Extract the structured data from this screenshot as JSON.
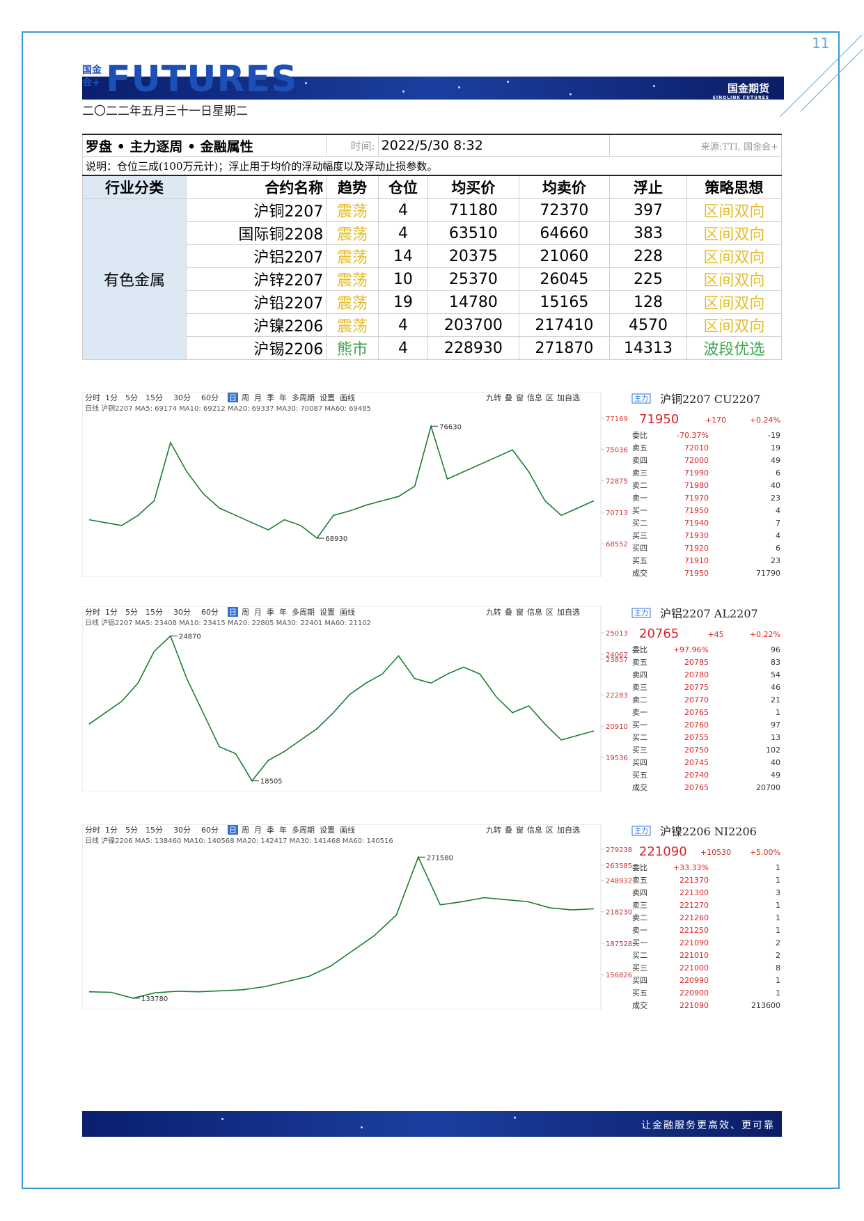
{
  "header": {
    "page_number": "11",
    "logo_small": "国金会+",
    "logo": "FUTURES",
    "brand": "国金期货",
    "brand_en": "SINOLINK FUTURES",
    "date": "二〇二二年五月三十一日星期二"
  },
  "table": {
    "title": "罗盘 • 主力逐周 • 金融属性",
    "time_label": "时间:",
    "time": "2022/5/30 8:32",
    "source": "来源:TTI, 国金会+",
    "note": "说明：仓位三成(100万元计)；浮止用于均价的浮动幅度以及浮动止损参数。",
    "columns": [
      "行业分类",
      "合约名称",
      "趋势",
      "仓位",
      "均买价",
      "均卖价",
      "浮止",
      "策略思想"
    ],
    "category": "有色金属",
    "rows": [
      {
        "name": "沪铜2207",
        "trend": "震荡",
        "position": 4,
        "buy": 71180,
        "sell": 72370,
        "stop": 397,
        "strategy": "区间双向",
        "color": "#e3bd2a"
      },
      {
        "name": "国际铜2208",
        "trend": "震荡",
        "position": 4,
        "buy": 63510,
        "sell": 64660,
        "stop": 383,
        "strategy": "区间双向",
        "color": "#e3bd2a"
      },
      {
        "name": "沪铝2207",
        "trend": "震荡",
        "position": 14,
        "buy": 20375,
        "sell": 21060,
        "stop": 228,
        "strategy": "区间双向",
        "color": "#e3bd2a"
      },
      {
        "name": "沪锌2207",
        "trend": "震荡",
        "position": 10,
        "buy": 25370,
        "sell": 26045,
        "stop": 225,
        "strategy": "区间双向",
        "color": "#e3bd2a"
      },
      {
        "name": "沪铅2207",
        "trend": "震荡",
        "position": 19,
        "buy": 14780,
        "sell": 15165,
        "stop": 128,
        "strategy": "区间双向",
        "color": "#e3bd2a"
      },
      {
        "name": "沪镍2206",
        "trend": "震荡",
        "position": 4,
        "buy": 203700,
        "sell": 217410,
        "stop": 4570,
        "strategy": "区间双向",
        "color": "#e3bd2a"
      },
      {
        "name": "沪锡2206",
        "trend": "熊市",
        "position": 4,
        "buy": 228930,
        "sell": 271870,
        "stop": 14313,
        "strategy": "波段优选",
        "color": "#3aa64a"
      }
    ]
  },
  "toolbar": [
    "分时",
    "1分",
    "5分",
    "15分",
    "30分",
    "60分",
    "日",
    "周",
    "月",
    "季",
    "年",
    "多周期",
    "设置",
    "画线"
  ],
  "tools": [
    "九转",
    "叠",
    "窗",
    "信息",
    "区",
    "加自选"
  ],
  "panels": [
    {
      "name": "沪铜2207 CU2207",
      "tag": "主力",
      "ma": "日线 沪铜2207 MA5: 69174 MA10: 69212 MA20: 69337 MA30: 70087 MA60: 69485",
      "price": 71950,
      "change": "+170",
      "pct": "+0.24%",
      "ratio_label": "委比",
      "ratio": "-70.37%",
      "ratio_vol": -19,
      "book": [
        [
          "卖五",
          72010,
          19
        ],
        [
          "卖四",
          72000,
          49
        ],
        [
          "卖三",
          71990,
          6
        ],
        [
          "卖二",
          71980,
          40
        ],
        [
          "卖一",
          71970,
          23
        ],
        [
          "买一",
          71950,
          4
        ],
        [
          "买二",
          71940,
          7
        ],
        [
          "买三",
          71930,
          4
        ],
        [
          "买四",
          71920,
          6
        ],
        [
          "买五",
          71910,
          23
        ]
      ],
      "trade": [
        "成交",
        71950,
        71790
      ],
      "yticks": [
        77169,
        75036,
        72875,
        70713,
        68552
      ],
      "high": 76630,
      "low": 68930,
      "closes": [
        70200,
        70000,
        69800,
        70500,
        71500,
        75500,
        73500,
        72000,
        71000,
        70500,
        70000,
        69500,
        70200,
        69800,
        68930,
        70500,
        70800,
        71200,
        71500,
        71800,
        72500,
        76630,
        73000,
        73500,
        74000,
        74500,
        75000,
        73500,
        71500,
        70500,
        71000,
        71500
      ]
    },
    {
      "name": "沪铝2207 AL2207",
      "tag": "主力",
      "ma": "日线 沪铝2207 MA5: 23408 MA10: 23415 MA20: 22805 MA30: 22401 MA60: 21102",
      "price": 20765,
      "change": "+45",
      "pct": "+0.22%",
      "ratio_label": "委比",
      "ratio": "+97.96%",
      "ratio_vol": 96,
      "book": [
        [
          "卖五",
          20785,
          83
        ],
        [
          "卖四",
          20780,
          54
        ],
        [
          "卖三",
          20775,
          46
        ],
        [
          "卖二",
          20770,
          21
        ],
        [
          "卖一",
          20765,
          1
        ],
        [
          "买一",
          20760,
          97
        ],
        [
          "买二",
          20755,
          13
        ],
        [
          "买三",
          20750,
          102
        ],
        [
          "买四",
          20745,
          40
        ],
        [
          "买五",
          20740,
          49
        ]
      ],
      "trade": [
        "成交",
        20765,
        20700
      ],
      "yticks": [
        25013,
        24067,
        23857,
        22283,
        20910,
        19536
      ],
      "high": 24870,
      "low": 18505,
      "closes": [
        21000,
        21500,
        22000,
        22800,
        24200,
        24870,
        23000,
        21500,
        20000,
        19700,
        18505,
        19400,
        19800,
        20300,
        20800,
        21500,
        22300,
        22800,
        23200,
        24000,
        23000,
        22800,
        23200,
        23500,
        23200,
        22200,
        21500,
        21800,
        21000,
        20300,
        20500,
        20700
      ]
    },
    {
      "name": "沪镍2206 NI2206",
      "tag": "主力",
      "ma": "日线 沪镍2206 MA5: 138460 MA10: 140568 MA20: 142417 MA30: 141468 MA60: 140516",
      "price": 221090,
      "change": "+10530",
      "pct": "+5.00%",
      "ratio_label": "委比",
      "ratio": "+33.33%",
      "ratio_vol": 1,
      "book": [
        [
          "卖五",
          221370,
          1
        ],
        [
          "卖四",
          221300,
          3
        ],
        [
          "卖三",
          221270,
          1
        ],
        [
          "卖二",
          221260,
          1
        ],
        [
          "卖一",
          221250,
          1
        ],
        [
          "买一",
          221090,
          2
        ],
        [
          "买二",
          221010,
          2
        ],
        [
          "买三",
          221000,
          8
        ],
        [
          "买四",
          220990,
          1
        ],
        [
          "买五",
          220900,
          1
        ]
      ],
      "trade": [
        "成交",
        221090,
        213600
      ],
      "yticks": [
        279238,
        263585,
        248932,
        218230,
        187528,
        156826
      ],
      "high": 271580,
      "low": 133780,
      "closes": [
        140000,
        139500,
        133780,
        139000,
        140500,
        140000,
        141000,
        142000,
        145000,
        150000,
        155000,
        165000,
        180000,
        195000,
        215000,
        271580,
        225000,
        228000,
        232000,
        230000,
        228000,
        222000,
        220000,
        221090
      ]
    }
  ],
  "footer": "让金融服务更高效、更可靠"
}
